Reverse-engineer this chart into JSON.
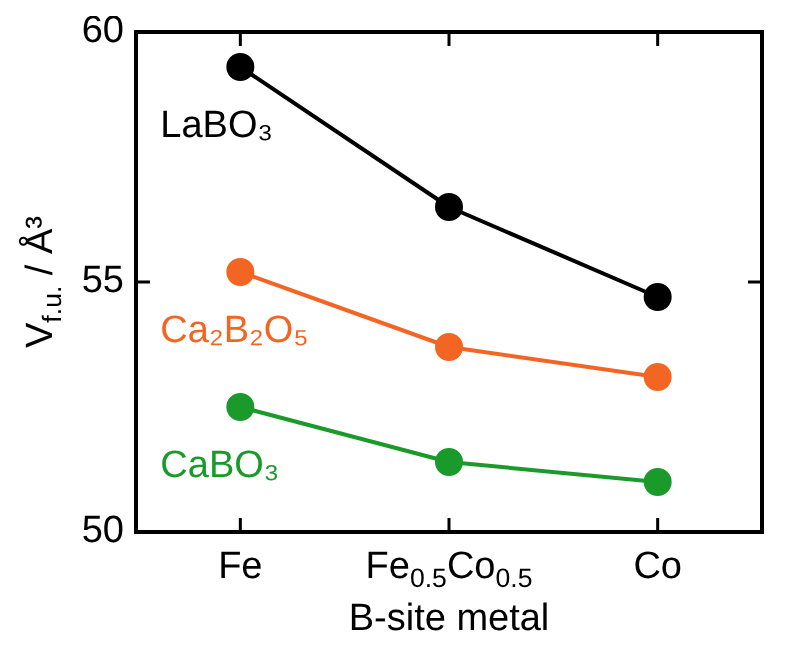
{
  "chart_data": {
    "type": "line",
    "xlabel": "B-site metal",
    "ylabel": "V$_{f.u.}$ / Å³",
    "categories": [
      "Fe",
      "Fe$_{0.5}$Co$_{0.5}$",
      "Co"
    ],
    "series": [
      {
        "name": "LaBO₃",
        "color": "#000000",
        "values": [
          59.3,
          56.5,
          54.7
        ]
      },
      {
        "name": "Ca₂B₂O₅",
        "color": "#f26522",
        "values": [
          55.2,
          53.7,
          53.1
        ]
      },
      {
        "name": "CaBO₃",
        "color": "#1a9a2a",
        "values": [
          52.5,
          51.4,
          51.0
        ]
      }
    ],
    "ylim": [
      50,
      60
    ],
    "yticks": [
      50,
      55,
      60
    ],
    "marker": "circle",
    "line_style": "solid",
    "grid": false,
    "legend": false
  }
}
